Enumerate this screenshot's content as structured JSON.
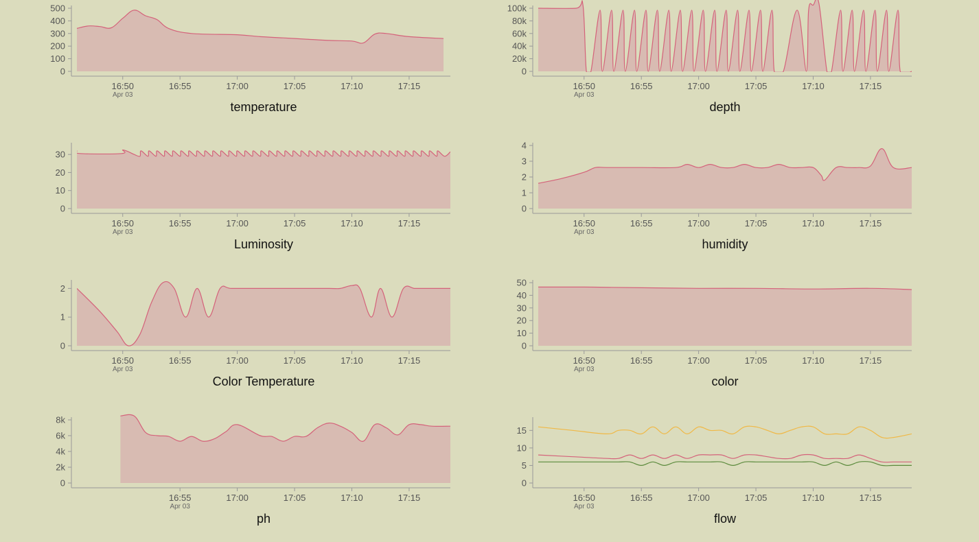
{
  "colors": {
    "background": "#dbdcbd",
    "area_fill": "#d8bbb2",
    "line": "#d4627a",
    "axis": "#999999",
    "text": "#555555"
  },
  "chart_data": [
    {
      "type": "area",
      "title": "temperature",
      "x_ticks": [
        "16:50",
        "16:55",
        "17:00",
        "17:05",
        "17:10",
        "17:15"
      ],
      "x_date_label": "Apr 03",
      "y_ticks": [
        "0",
        "100",
        "200",
        "300",
        "400",
        "500"
      ],
      "ylim": [
        0,
        500
      ],
      "series": [
        {
          "color": "#d4627a",
          "x": [
            "16:46",
            "16:47",
            "16:48",
            "16:49",
            "16:50",
            "16:51",
            "16:52",
            "16:53",
            "16:54",
            "16:56",
            "17:00",
            "17:02",
            "17:04",
            "17:06",
            "17:08",
            "17:10",
            "17:11",
            "17:12",
            "17:13",
            "17:15",
            "17:18"
          ],
          "y": [
            340,
            360,
            355,
            345,
            420,
            485,
            440,
            410,
            340,
            300,
            290,
            275,
            265,
            255,
            245,
            240,
            225,
            295,
            300,
            275,
            260
          ]
        }
      ]
    },
    {
      "type": "area",
      "title": "depth",
      "x_ticks": [
        "16:50",
        "16:55",
        "17:00",
        "17:05",
        "17:10",
        "17:15"
      ],
      "x_date_label": "Apr 03",
      "y_ticks": [
        "0",
        "20k",
        "40k",
        "60k",
        "80k",
        "100k"
      ],
      "ylim": [
        0,
        100000
      ],
      "series": [
        {
          "color": "#d4627a",
          "x": [
            "16:46",
            "16:49.3",
            "16:49.9",
            "16:50.2",
            "16:50.6",
            "16:51.4",
            "16:51.6",
            "16:52.4",
            "16:52.6",
            "16:53.4",
            "16:53.6",
            "16:54.4",
            "16:54.6",
            "16:55.4",
            "16:55.6",
            "16:56.4",
            "16:56.6",
            "16:57.4",
            "16:57.6",
            "16:58.4",
            "16:58.6",
            "16:59.4",
            "16:59.6",
            "17:00.4",
            "17:00.6",
            "17:01.4",
            "17:01.6",
            "17:02.4",
            "17:02.6",
            "17:03.4",
            "17:03.6",
            "17:04.4",
            "17:04.6",
            "17:05.4",
            "17:05.6",
            "17:06.4",
            "17:06.6",
            "17:07.4",
            "17:08.6",
            "17:09.4",
            "17:09.6",
            "17:10",
            "17:10.5",
            "17:11.2",
            "17:11.6",
            "17:12.4",
            "17:12.6",
            "17:13.4",
            "17:13.6",
            "17:14.4",
            "17:14.6",
            "17:15.4",
            "17:15.6",
            "17:16.4",
            "17:16.6",
            "17:17.4",
            "17:17.6",
            "17:18.6"
          ],
          "y": [
            100000,
            100000,
            105000,
            0,
            0,
            97000,
            0,
            97000,
            0,
            97000,
            0,
            97000,
            0,
            97000,
            0,
            97000,
            0,
            97000,
            0,
            97000,
            0,
            97000,
            0,
            97000,
            0,
            97000,
            0,
            97000,
            0,
            97000,
            0,
            97000,
            0,
            97000,
            0,
            97000,
            0,
            0,
            97000,
            0,
            97000,
            105000,
            108000,
            0,
            0,
            97000,
            0,
            97000,
            0,
            97000,
            0,
            97000,
            0,
            97000,
            0,
            97000,
            0,
            0
          ]
        }
      ]
    },
    {
      "type": "area",
      "title": "Luminosity",
      "x_ticks": [
        "16:50",
        "16:55",
        "17:00",
        "17:05",
        "17:10",
        "17:15"
      ],
      "x_date_label": "Apr 03",
      "y_ticks": [
        "0",
        "10",
        "20",
        "30"
      ],
      "ylim": [
        0,
        35
      ],
      "series": [
        {
          "color": "#d4627a",
          "x": [
            "16:46",
            "16:46.3",
            "16:49.9",
            "16:50",
            "16:50.5",
            "16:51",
            "16:51.5",
            "16:51.6",
            "16:52.2",
            "16:52.3",
            "16:52.9",
            "16:53",
            "16:53.6",
            "16:53.7",
            "16:54.3",
            "16:54.4",
            "16:55",
            "16:55.1",
            "16:55.7",
            "16:55.8",
            "16:56.4",
            "16:56.5",
            "16:57.1",
            "16:57.2",
            "16:57.8",
            "16:57.9",
            "16:58.5",
            "16:58.6",
            "16:59.2",
            "16:59.3",
            "16:59.9",
            "17:00",
            "17:00.6",
            "17:00.7",
            "17:01.3",
            "17:01.4",
            "17:02",
            "17:02.1",
            "17:02.7",
            "17:02.8",
            "17:03.4",
            "17:03.5",
            "17:04.1",
            "17:04.2",
            "17:04.8",
            "17:04.9",
            "17:05.5",
            "17:05.6",
            "17:06.2",
            "17:06.3",
            "17:06.9",
            "17:07",
            "17:07.6",
            "17:07.7",
            "17:08.3",
            "17:08.4",
            "17:09",
            "17:09.1",
            "17:09.7",
            "17:09.8",
            "17:10.4",
            "17:10.5",
            "17:11.1",
            "17:11.2",
            "17:11.8",
            "17:11.9",
            "17:12.5",
            "17:12.6",
            "17:13.2",
            "17:13.3",
            "17:13.9",
            "17:14",
            "17:14.6",
            "17:14.7",
            "17:15.3",
            "17:15.4",
            "17:16",
            "17:16.1",
            "17:16.7",
            "17:16.8",
            "17:17.4",
            "17:17.5",
            "17:18.1",
            "17:18.6"
          ],
          "y": [
            32,
            30.5,
            30.5,
            32.5,
            31.5,
            30,
            29,
            32,
            29,
            32,
            29,
            32,
            29,
            32,
            29,
            32,
            29,
            32,
            29,
            32,
            29,
            32,
            29,
            32,
            29,
            32,
            29,
            32,
            29,
            32,
            29,
            32,
            29,
            32,
            29,
            32,
            29,
            32,
            29,
            32,
            29,
            32,
            29,
            32,
            29,
            32,
            29,
            32,
            29,
            32,
            29,
            32,
            29,
            32,
            29,
            32,
            29,
            32,
            29,
            32,
            29,
            32,
            29,
            32,
            29,
            32,
            29,
            32,
            29,
            32,
            29,
            32,
            29,
            32,
            29,
            32,
            29,
            32,
            29,
            32,
            29,
            32,
            29,
            31.5
          ]
        }
      ]
    },
    {
      "type": "area",
      "title": "humidity",
      "x_ticks": [
        "16:50",
        "16:55",
        "17:00",
        "17:05",
        "17:10",
        "17:15"
      ],
      "x_date_label": "Apr 03",
      "y_ticks": [
        "0",
        "1",
        "2",
        "3",
        "4"
      ],
      "ylim": [
        0,
        4
      ],
      "series": [
        {
          "color": "#d4627a",
          "x": [
            "16:46",
            "16:48",
            "16:50",
            "16:51",
            "16:52",
            "16:55",
            "16:58",
            "16:59",
            "17:00",
            "17:01",
            "17:02",
            "17:03",
            "17:04",
            "17:05",
            "17:06",
            "17:07",
            "17:08",
            "17:09",
            "17:10",
            "17:10.7",
            "17:11",
            "17:12",
            "17:13",
            "17:14",
            "17:15",
            "17:16",
            "17:17",
            "17:18.6"
          ],
          "y": [
            1.6,
            1.9,
            2.3,
            2.6,
            2.6,
            2.6,
            2.6,
            2.8,
            2.6,
            2.8,
            2.6,
            2.6,
            2.8,
            2.6,
            2.6,
            2.8,
            2.6,
            2.6,
            2.6,
            2.1,
            1.8,
            2.6,
            2.6,
            2.6,
            2.7,
            3.8,
            2.6,
            2.6
          ]
        }
      ]
    },
    {
      "type": "area",
      "title": "Color Temperature",
      "x_ticks": [
        "16:50",
        "16:55",
        "17:00",
        "17:05",
        "17:10",
        "17:15"
      ],
      "x_date_label": "Apr 03",
      "y_ticks": [
        "0",
        "1",
        "2"
      ],
      "ylim": [
        0,
        2.2
      ],
      "series": [
        {
          "color": "#d4627a",
          "x": [
            "16:46",
            "16:48",
            "16:49.5",
            "16:50.5",
            "16:51.5",
            "16:52.5",
            "16:53.5",
            "16:54.5",
            "16:55.5",
            "16:56.5",
            "16:57.5",
            "16:58.5",
            "16:59.5",
            "17:02",
            "17:05",
            "17:08",
            "17:09",
            "17:10",
            "17:10.7",
            "17:11.7",
            "17:12.5",
            "17:13.5",
            "17:14.5",
            "17:15.5",
            "17:16.5",
            "17:18.6"
          ],
          "y": [
            2,
            1.2,
            0.5,
            0,
            0.4,
            1.5,
            2.2,
            2,
            1,
            2,
            1,
            2,
            2,
            2,
            2,
            2,
            2,
            2.1,
            2,
            1,
            2,
            1,
            2,
            2,
            2,
            2
          ]
        }
      ]
    },
    {
      "type": "area",
      "title": "color",
      "x_ticks": [
        "16:50",
        "16:55",
        "17:00",
        "17:05",
        "17:10",
        "17:15"
      ],
      "x_date_label": "Apr 03",
      "y_ticks": [
        "0",
        "10",
        "20",
        "30",
        "40",
        "50"
      ],
      "ylim": [
        0,
        50
      ],
      "series": [
        {
          "color": "#d4627a",
          "x": [
            "16:46",
            "16:50",
            "16:55",
            "17:00",
            "17:05",
            "17:10",
            "17:15",
            "17:18.6"
          ],
          "y": [
            46.5,
            46.5,
            46,
            45.5,
            45.5,
            45,
            45.5,
            44.5
          ]
        }
      ]
    },
    {
      "type": "area",
      "title": "ph",
      "x_ticks": [
        "16:55",
        "17:00",
        "17:05",
        "17:10",
        "17:15"
      ],
      "x_date_label": "Apr 03",
      "y_ticks": [
        "0",
        "2k",
        "4k",
        "6k",
        "8k"
      ],
      "ylim": [
        0,
        8000
      ],
      "series": [
        {
          "color": "#d4627a",
          "x": [
            "16:49.8",
            "16:51",
            "16:52",
            "16:53",
            "16:54",
            "16:55",
            "16:56",
            "16:57",
            "16:58",
            "16:59",
            "17:00",
            "17:02",
            "17:03",
            "17:04",
            "17:05",
            "17:06",
            "17:07",
            "17:08",
            "17:09",
            "17:10",
            "17:11",
            "17:12",
            "17:13",
            "17:14",
            "17:15",
            "17:16",
            "17:17",
            "17:18.6"
          ],
          "y": [
            8500,
            8500,
            6400,
            6000,
            5900,
            5300,
            5900,
            5300,
            5600,
            6500,
            7400,
            6000,
            5900,
            5300,
            5900,
            5900,
            7000,
            7600,
            7200,
            6400,
            5300,
            7400,
            7000,
            6100,
            7400,
            7400,
            7200,
            7200
          ]
        }
      ]
    },
    {
      "type": "line",
      "title": "flow",
      "x_ticks": [
        "16:50",
        "16:55",
        "17:00",
        "17:05",
        "17:10",
        "17:15"
      ],
      "x_date_label": "Apr 03",
      "y_ticks": [
        "0",
        "5",
        "10",
        "15"
      ],
      "ylim": [
        0,
        18
      ],
      "series": [
        {
          "color": "#f0b845",
          "x": [
            "16:46",
            "16:49",
            "16:52",
            "16:53",
            "16:54",
            "16:55",
            "16:56",
            "16:57",
            "16:58",
            "16:59",
            "17:00",
            "17:01",
            "17:02",
            "17:03",
            "17:04",
            "17:05",
            "17:06",
            "17:07",
            "17:08",
            "17:09",
            "17:10",
            "17:11",
            "17:12",
            "17:13",
            "17:14",
            "17:15",
            "17:16",
            "17:17",
            "17:18.6"
          ],
          "y": [
            16,
            15,
            14,
            15,
            15,
            14,
            16,
            14,
            16,
            14,
            16,
            15,
            15,
            14,
            16,
            16,
            15,
            14,
            15,
            16,
            16,
            14,
            14,
            14,
            16,
            15,
            13,
            13,
            14
          ]
        },
        {
          "color": "#d4627a",
          "x": [
            "16:46",
            "16:49",
            "16:52",
            "16:53",
            "16:54",
            "16:55",
            "16:56",
            "16:57",
            "16:58",
            "16:59",
            "17:00",
            "17:01",
            "17:02",
            "17:03",
            "17:04",
            "17:05",
            "17:06",
            "17:07",
            "17:08",
            "17:09",
            "17:10",
            "17:11",
            "17:12",
            "17:13",
            "17:14",
            "17:15",
            "17:16",
            "17:17",
            "17:18.6"
          ],
          "y": [
            8,
            7.5,
            7,
            7,
            8,
            7,
            8,
            7,
            8,
            7,
            8,
            8,
            8,
            7,
            8,
            8,
            7.5,
            7,
            7,
            8,
            8,
            7,
            7,
            7,
            8,
            7,
            6,
            6,
            6
          ]
        },
        {
          "color": "#5b8a3c",
          "x": [
            "16:46",
            "16:49",
            "16:52",
            "16:53",
            "16:54",
            "16:55",
            "16:56",
            "16:57",
            "16:58",
            "16:59",
            "17:00",
            "17:01",
            "17:02",
            "17:03",
            "17:04",
            "17:05",
            "17:06",
            "17:07",
            "17:08",
            "17:09",
            "17:10",
            "17:11",
            "17:12",
            "17:13",
            "17:14",
            "17:15",
            "17:16",
            "17:17",
            "17:18.6"
          ],
          "y": [
            6,
            6,
            6,
            6,
            6,
            5,
            6,
            5,
            6,
            6,
            6,
            6,
            6,
            5,
            6,
            6,
            6,
            6,
            6,
            6,
            6,
            5,
            6,
            5,
            6,
            6,
            5,
            5,
            5
          ]
        }
      ]
    }
  ]
}
